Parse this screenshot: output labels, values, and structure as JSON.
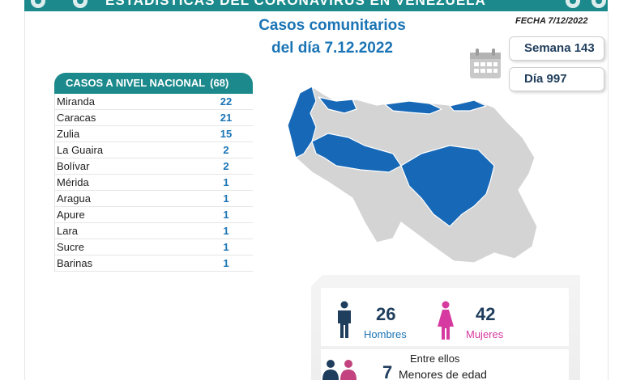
{
  "banner": {
    "title": "ESTADÍSTICAS DEL CORONAVIRUS EN VENEZUELA"
  },
  "headline": {
    "line1": "Casos comunitarios",
    "line2": "del día 7.12.2022"
  },
  "fecha": "FECHA 7/12/2022",
  "semana": "Semana 143",
  "dia": "Día 997",
  "cases": {
    "title": "CASOS A NIVEL NACIONAL",
    "total": "(68)",
    "rows": [
      {
        "state": "Miranda",
        "value": "22"
      },
      {
        "state": "Caracas",
        "value": "21"
      },
      {
        "state": "Zulia",
        "value": "15"
      },
      {
        "state": "La Guaira",
        "value": "2"
      },
      {
        "state": "Bolívar",
        "value": "2"
      },
      {
        "state": "Mérida",
        "value": "1"
      },
      {
        "state": "Aragua",
        "value": "1"
      },
      {
        "state": "Apure",
        "value": "1"
      },
      {
        "state": "Lara",
        "value": "1"
      },
      {
        "state": "Sucre",
        "value": "1"
      },
      {
        "state": "Barinas",
        "value": "1"
      }
    ]
  },
  "gender": {
    "men_count": "26",
    "men_label": "Hombres",
    "women_count": "42",
    "women_label": "Mujeres"
  },
  "minors": {
    "intro": "Entre ellos",
    "count": "7",
    "label": "Menores de edad"
  },
  "colors": {
    "teal": "#1c8a8c",
    "blue": "#1a74b5",
    "map_highlight": "#1769b8",
    "map_base": "#d4d4d4",
    "pink": "#d63aa0"
  }
}
